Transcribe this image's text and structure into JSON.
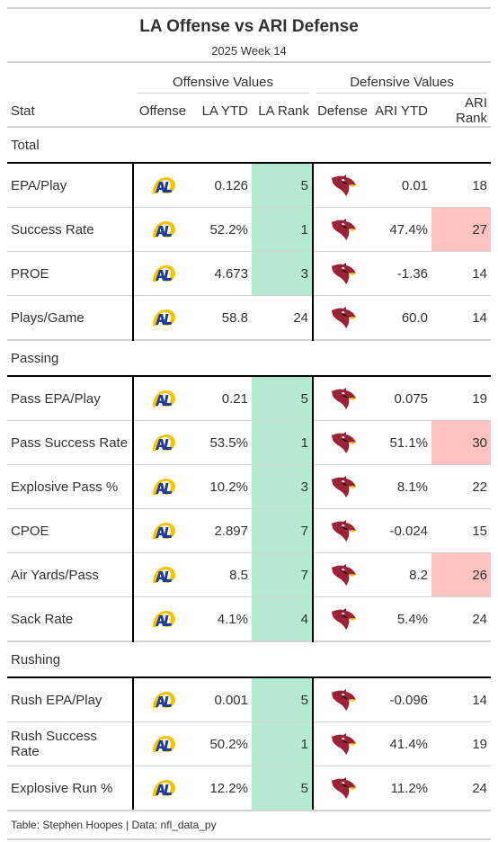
{
  "header": {
    "title": "LA Offense vs ARI Defense",
    "subtitle": "2025 Week 14"
  },
  "spanners": {
    "offense": "Offensive Values",
    "defense": "Defensive Values"
  },
  "columns": {
    "stat": "Stat",
    "offense": "Offense",
    "off_ytd": "LA YTD",
    "off_rank": "LA Rank",
    "defense": "Defense",
    "def_ytd": "ARI YTD",
    "def_rank": "ARI Rank"
  },
  "groups": [
    {
      "label": "Total",
      "rows": [
        {
          "stat": "EPA/Play",
          "off_ytd": "0.126",
          "off_rank": "5",
          "off_hl": "good",
          "def_ytd": "0.01",
          "def_rank": "18",
          "def_hl": ""
        },
        {
          "stat": "Success Rate",
          "off_ytd": "52.2%",
          "off_rank": "1",
          "off_hl": "good",
          "def_ytd": "47.4%",
          "def_rank": "27",
          "def_hl": "bad"
        },
        {
          "stat": "PROE",
          "off_ytd": "4.673",
          "off_rank": "3",
          "off_hl": "good",
          "def_ytd": "-1.36",
          "def_rank": "14",
          "def_hl": ""
        },
        {
          "stat": "Plays/Game",
          "off_ytd": "58.8",
          "off_rank": "24",
          "off_hl": "",
          "def_ytd": "60.0",
          "def_rank": "14",
          "def_hl": ""
        }
      ]
    },
    {
      "label": "Passing",
      "rows": [
        {
          "stat": "Pass EPA/Play",
          "off_ytd": "0.21",
          "off_rank": "5",
          "off_hl": "good",
          "def_ytd": "0.075",
          "def_rank": "19",
          "def_hl": ""
        },
        {
          "stat": "Pass Success Rate",
          "off_ytd": "53.5%",
          "off_rank": "1",
          "off_hl": "good",
          "def_ytd": "51.1%",
          "def_rank": "30",
          "def_hl": "bad"
        },
        {
          "stat": "Explosive Pass %",
          "off_ytd": "10.2%",
          "off_rank": "3",
          "off_hl": "good",
          "def_ytd": "8.1%",
          "def_rank": "22",
          "def_hl": ""
        },
        {
          "stat": "CPOE",
          "off_ytd": "2.897",
          "off_rank": "7",
          "off_hl": "good",
          "def_ytd": "-0.024",
          "def_rank": "15",
          "def_hl": ""
        },
        {
          "stat": "Air Yards/Pass",
          "off_ytd": "8.5",
          "off_rank": "7",
          "off_hl": "good",
          "def_ytd": "8.2",
          "def_rank": "26",
          "def_hl": "bad"
        },
        {
          "stat": "Sack Rate",
          "off_ytd": "4.1%",
          "off_rank": "4",
          "off_hl": "good",
          "def_ytd": "5.4%",
          "def_rank": "24",
          "def_hl": ""
        }
      ]
    },
    {
      "label": "Rushing",
      "rows": [
        {
          "stat": "Rush EPA/Play",
          "off_ytd": "0.001",
          "off_rank": "5",
          "off_hl": "good",
          "def_ytd": "-0.096",
          "def_rank": "14",
          "def_hl": ""
        },
        {
          "stat": "Rush Success Rate",
          "off_ytd": "50.2%",
          "off_rank": "1",
          "off_hl": "good",
          "def_ytd": "41.4%",
          "def_rank": "19",
          "def_hl": ""
        },
        {
          "stat": "Explosive Run %",
          "off_ytd": "12.2%",
          "off_rank": "5",
          "off_hl": "good",
          "def_ytd": "11.2%",
          "def_rank": "24",
          "def_hl": ""
        }
      ]
    }
  ],
  "icons": {
    "offense": "rams-logo-icon",
    "defense": "cardinals-logo-icon"
  },
  "colors": {
    "good": "#b3ead1",
    "bad": "#fcc2c2",
    "rams_blue": "#1f3c9b",
    "rams_gold": "#f5c400",
    "cardinals_red": "#9b2335"
  },
  "footer": {
    "text": "Table: Stephen Hoopes | Data: nfl_data_py"
  }
}
